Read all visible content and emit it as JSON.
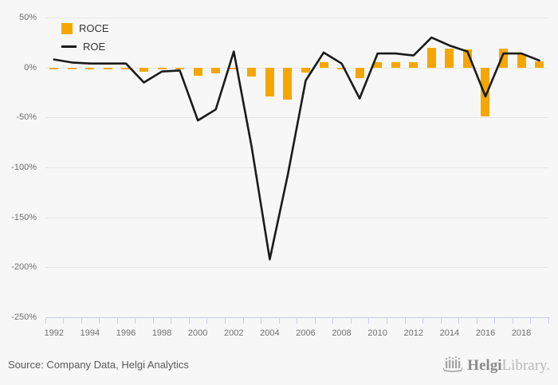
{
  "colors": {
    "background": "#f7f7f7",
    "bar": "#f5a700",
    "line": "#1a1a1a",
    "grid": "#e6e6e6",
    "axis": "#c6cde6",
    "tick_label": "#6f6f6f",
    "legend_text": "#333333",
    "source_text": "#595959",
    "logo_gray": "#a3a3a3"
  },
  "legend": {
    "roce": {
      "label": "ROCE"
    },
    "roe": {
      "label": "ROE"
    }
  },
  "footer": {
    "source": "Source: Company Data, Helgi Analytics",
    "logo_bold": "Helgi",
    "logo_light": "Library."
  },
  "chart_data": {
    "type": "bar",
    "subtype": "bar-and-line-combo",
    "title": "",
    "xlabel": "",
    "ylabel": "",
    "ylim": [
      -250,
      50
    ],
    "y_tick_step": 50,
    "y_tick_labels": [
      "50%",
      "0%",
      "-50%",
      "-100%",
      "-150%",
      "-200%",
      "-250%"
    ],
    "y_tick_values": [
      50,
      0,
      -50,
      -100,
      -150,
      -200,
      -250
    ],
    "grid": "horizontal",
    "legend_position": "top-left-inside",
    "categories": [
      1992,
      1993,
      1994,
      1995,
      1996,
      1997,
      1998,
      1999,
      2000,
      2001,
      2002,
      2003,
      2004,
      2005,
      2006,
      2007,
      2008,
      2009,
      2010,
      2011,
      2012,
      2013,
      2014,
      2015,
      2016,
      2017,
      2018,
      2019
    ],
    "x_tick_labels": [
      "1992",
      "1994",
      "1996",
      "1998",
      "2000",
      "2002",
      "2004",
      "2006",
      "2008",
      "2010",
      "2012",
      "2014",
      "2016",
      "2018"
    ],
    "series": [
      {
        "name": "ROCE",
        "type": "bar",
        "color": "#f5a700",
        "unit": "%",
        "values": [
          -2,
          -2,
          -2,
          -2,
          -2,
          -4,
          -2,
          -2,
          -8,
          -6,
          -2,
          -9,
          -29,
          -32,
          -5,
          5,
          -2,
          -11,
          5,
          5,
          5,
          20,
          19,
          18,
          -49,
          19,
          13,
          6
        ]
      },
      {
        "name": "ROE",
        "type": "line",
        "color": "#1a1a1a",
        "unit": "%",
        "values": [
          8,
          5,
          4,
          4,
          4,
          -15,
          -4,
          -3,
          -53,
          -42,
          16,
          -80,
          -192,
          -108,
          -13,
          15,
          4,
          -31,
          14,
          14,
          12,
          30,
          22,
          16,
          -29,
          14,
          14,
          7
        ]
      }
    ]
  }
}
